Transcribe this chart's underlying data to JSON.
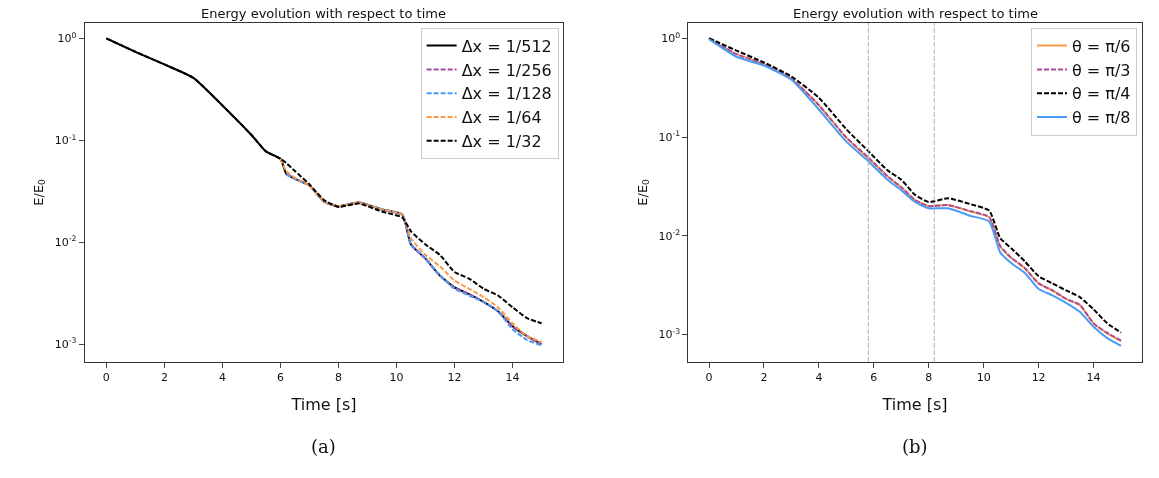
{
  "chart_data": [
    {
      "type": "line",
      "title": "Energy evolution with respect to time",
      "xlabel": "Time [s]",
      "ylabel": "E/E$_{0}$",
      "annotations": [
        "(a)"
      ],
      "log": "y",
      "legend": "top right",
      "xlim": [
        -0.75,
        15.75
      ],
      "xticks": [
        0,
        2,
        4,
        6,
        8,
        10,
        12,
        14
      ],
      "ylim": [
        0.00067,
        1.42
      ],
      "yticks": [
        {
          "value": 1,
          "label": "10$^{0}$"
        },
        {
          "value": 0.1,
          "label": "10$^{-1}$"
        },
        {
          "value": 0.01,
          "label": "10$^{-2}$"
        },
        {
          "value": 0.001,
          "label": "10$^{-3}$"
        }
      ],
      "x": [
        0,
        1,
        2,
        3,
        4,
        5,
        5.5,
        6,
        6.2,
        6.5,
        7,
        7.5,
        8,
        8.7,
        9.5,
        10.2,
        10.5,
        11,
        11.5,
        12,
        12.5,
        13,
        13.5,
        14,
        14.5,
        15
      ],
      "series": [
        {
          "name": "Δx = 1/512",
          "color": "#000000",
          "line_style": "solid",
          "values": [
            1.0,
            0.74,
            0.556,
            0.41,
            0.22,
            0.113,
            0.078,
            0.066,
            0.047,
            0.042,
            0.036,
            0.025,
            0.0225,
            0.0245,
            0.021,
            0.0187,
            0.0095,
            0.0069,
            0.0047,
            0.0036,
            0.0031,
            0.0026,
            0.0021,
            0.0015,
            0.0012,
            0.001
          ]
        },
        {
          "name": "Δx = 1/256",
          "color": "#a64d9e",
          "line_style": "dashed",
          "values": [
            null,
            null,
            null,
            null,
            null,
            null,
            null,
            null,
            0.047,
            0.042,
            0.036,
            0.025,
            0.0225,
            0.0245,
            0.021,
            0.0187,
            0.0094,
            0.0069,
            0.0047,
            0.0036,
            0.0031,
            0.0026,
            0.0021,
            0.0015,
            0.0012,
            0.001
          ]
        },
        {
          "name": "Δx = 1/128",
          "color": "#4a9bf5",
          "line_style": "dashed",
          "values": [
            null,
            null,
            null,
            null,
            null,
            null,
            null,
            null,
            0.046,
            0.042,
            0.036,
            0.025,
            0.0225,
            0.0245,
            0.021,
            0.0187,
            0.0096,
            0.007,
            0.0047,
            0.0035,
            0.003,
            0.0026,
            0.0021,
            0.0014,
            0.0011,
            0.00097
          ]
        },
        {
          "name": "Δx = 1/64",
          "color": "#f89a4a",
          "line_style": "dashed",
          "values": [
            null,
            null,
            null,
            null,
            null,
            null,
            null,
            0.066,
            0.05,
            0.043,
            0.036,
            0.025,
            0.0225,
            0.0245,
            0.021,
            0.0187,
            0.0109,
            0.0075,
            0.0058,
            0.0042,
            0.0035,
            0.0029,
            0.0023,
            0.0016,
            0.0012,
            0.00105
          ]
        },
        {
          "name": "Δx = 1/32",
          "color": "#000000",
          "line_style": "dashed",
          "values": [
            1.0,
            0.74,
            0.556,
            0.41,
            0.22,
            0.113,
            0.078,
            0.066,
            0.06,
            0.05,
            0.037,
            0.026,
            0.0222,
            0.024,
            0.02,
            0.0175,
            0.0128,
            0.0095,
            0.0075,
            0.0051,
            0.0044,
            0.0035,
            0.003,
            0.0023,
            0.0018,
            0.0016
          ]
        }
      ]
    },
    {
      "type": "line",
      "title": "Energy evolution with respect to time",
      "xlabel": "Time [s]",
      "ylabel": "E/E$_{0}$",
      "annotations": [
        "(b)"
      ],
      "log": "y",
      "legend": "top right",
      "xlim": [
        -0.75,
        15.75
      ],
      "xticks": [
        0,
        2,
        4,
        6,
        8,
        10,
        12,
        14
      ],
      "ylim": [
        0.00053,
        1.43
      ],
      "yticks": [
        {
          "value": 1,
          "label": "10$^{0}$"
        },
        {
          "value": 0.1,
          "label": "10$^{-1}$"
        },
        {
          "value": 0.01,
          "label": "10$^{-2}$"
        },
        {
          "value": 0.001,
          "label": "10$^{-3}$"
        }
      ],
      "ref_lines": [
        {
          "axis": "x",
          "value": 5.8,
          "label": null,
          "color": "#b0b0b0",
          "line_style": "dashed"
        },
        {
          "axis": "x",
          "value": 8.2,
          "label": null,
          "color": "#b0b0b0",
          "line_style": "dashed"
        }
      ],
      "x": [
        0,
        1,
        2,
        3,
        4,
        5,
        5.8,
        6.5,
        7,
        7.5,
        8,
        8.7,
        9.5,
        10.2,
        10.6,
        11,
        11.5,
        12,
        12.5,
        13,
        13.5,
        14,
        14.5,
        15
      ],
      "series": [
        {
          "name": "θ = π/6",
          "color": "#f89a4a",
          "line_style": "solid",
          "values": [
            1.0,
            0.69,
            0.55,
            0.39,
            0.21,
            0.098,
            0.061,
            0.04,
            0.031,
            0.023,
            0.02,
            0.0205,
            0.0177,
            0.0154,
            0.0078,
            0.006,
            0.0047,
            0.0033,
            0.0028,
            0.0023,
            0.002,
            0.0013,
            0.00103,
            0.00086
          ]
        },
        {
          "name": "θ = π/3",
          "color": "#a64d9e",
          "line_style": "dashed",
          "values": [
            1.0,
            0.69,
            0.55,
            0.39,
            0.21,
            0.099,
            0.062,
            0.04,
            0.031,
            0.023,
            0.02,
            0.0205,
            0.0178,
            0.0155,
            0.0079,
            0.006,
            0.0047,
            0.0033,
            0.0028,
            0.0023,
            0.002,
            0.0013,
            0.00104,
            0.00087
          ]
        },
        {
          "name": "θ = π/4",
          "color": "#000000",
          "line_style": "dashed",
          "values": [
            1.0,
            0.75,
            0.57,
            0.41,
            0.25,
            0.12,
            0.072,
            0.046,
            0.037,
            0.026,
            0.022,
            0.024,
            0.021,
            0.018,
            0.0095,
            0.0075,
            0.0055,
            0.0039,
            0.0033,
            0.0028,
            0.0024,
            0.0018,
            0.0013,
            0.00105
          ]
        },
        {
          "name": "θ = π/8",
          "color": "#4a9bf5",
          "line_style": "solid",
          "values": [
            0.98,
            0.65,
            0.53,
            0.38,
            0.19,
            0.09,
            0.057,
            0.037,
            0.029,
            0.022,
            0.019,
            0.019,
            0.016,
            0.014,
            0.0068,
            0.0053,
            0.0042,
            0.0029,
            0.0025,
            0.0021,
            0.0017,
            0.0012,
            0.00092,
            0.00077
          ]
        }
      ]
    }
  ]
}
